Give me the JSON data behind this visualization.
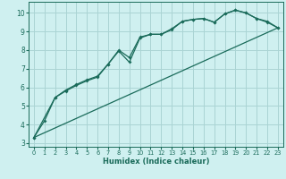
{
  "background_color": "#cff0f0",
  "grid_color": "#aad4d4",
  "line_color": "#1a6b5a",
  "x_label": "Humidex (Indice chaleur)",
  "xlim": [
    -0.5,
    23.5
  ],
  "ylim": [
    2.8,
    10.6
  ],
  "yticks": [
    3,
    4,
    5,
    6,
    7,
    8,
    9,
    10
  ],
  "xticks": [
    0,
    1,
    2,
    3,
    4,
    5,
    6,
    7,
    8,
    9,
    10,
    11,
    12,
    13,
    14,
    15,
    16,
    17,
    18,
    19,
    20,
    21,
    22,
    23
  ],
  "line1_x": [
    0,
    1,
    2,
    3,
    4,
    5,
    6,
    7,
    8,
    9,
    10,
    11,
    12,
    13,
    14,
    15,
    16,
    17,
    18,
    19,
    20,
    21,
    22,
    23
  ],
  "line1_y": [
    3.3,
    4.2,
    5.45,
    5.8,
    6.1,
    6.35,
    6.55,
    7.25,
    7.95,
    7.35,
    8.65,
    8.85,
    8.85,
    9.1,
    9.55,
    9.65,
    9.7,
    9.5,
    9.95,
    10.15,
    10.0,
    9.7,
    9.5,
    9.2
  ],
  "line2_x": [
    0,
    2,
    3,
    4,
    5,
    6,
    7,
    8,
    9,
    10,
    11,
    12,
    13,
    14,
    15,
    16,
    17,
    18,
    19,
    20,
    21,
    22,
    23
  ],
  "line2_y": [
    3.3,
    5.45,
    5.85,
    6.15,
    6.4,
    6.6,
    7.25,
    8.0,
    7.6,
    8.7,
    8.85,
    8.85,
    9.15,
    9.55,
    9.65,
    9.7,
    9.5,
    9.95,
    10.15,
    10.0,
    9.7,
    9.55,
    9.2
  ],
  "line3_x": [
    0,
    23
  ],
  "line3_y": [
    3.3,
    9.2
  ]
}
